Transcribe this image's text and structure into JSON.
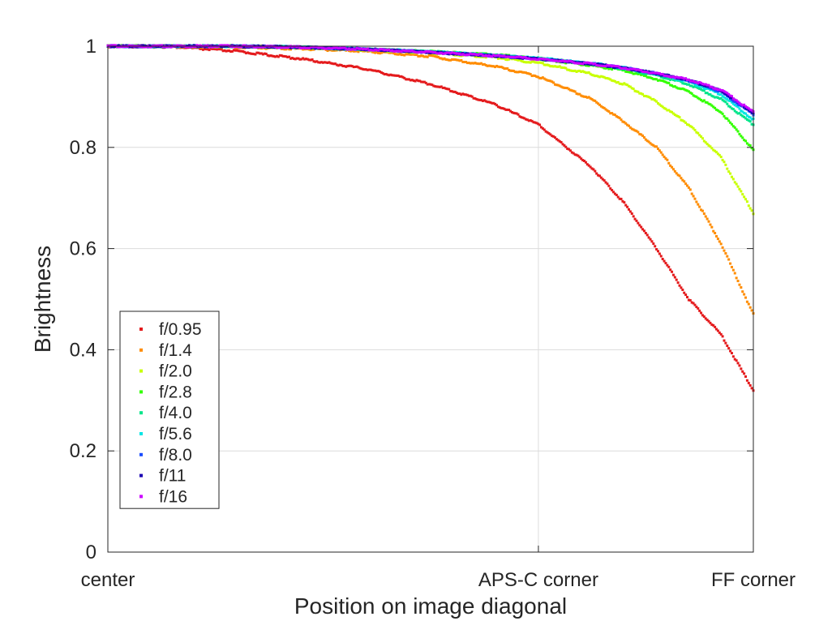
{
  "chart_data": {
    "type": "scatter",
    "title": "",
    "xlabel": "Position on image diagonal",
    "ylabel": "Brightness",
    "xlim": [
      0,
      1
    ],
    "ylim": [
      0,
      1
    ],
    "x_ticks": [
      {
        "value": 0,
        "label": "center"
      },
      {
        "value": 0.667,
        "label": "APS-C corner"
      },
      {
        "value": 1,
        "label": "FF corner"
      }
    ],
    "y_ticks": [
      {
        "value": 0,
        "label": "0"
      },
      {
        "value": 0.2,
        "label": "0.2"
      },
      {
        "value": 0.4,
        "label": "0.4"
      },
      {
        "value": 0.6,
        "label": "0.6"
      },
      {
        "value": 0.8,
        "label": "0.8"
      },
      {
        "value": 1,
        "label": "1"
      }
    ],
    "grid": true,
    "legend_position": "bottom-left",
    "x": [
      0,
      0.1,
      0.2,
      0.3,
      0.4,
      0.5,
      0.6,
      0.667,
      0.75,
      0.8,
      0.85,
      0.9,
      0.95,
      1.0
    ],
    "series": [
      {
        "name": "f/0.95",
        "color": "#e41a1c",
        "values": [
          1.0,
          0.999,
          0.99,
          0.975,
          0.955,
          0.925,
          0.885,
          0.845,
          0.76,
          0.69,
          0.6,
          0.5,
          0.43,
          0.32
        ]
      },
      {
        "name": "f/1.4",
        "color": "#ff8c00",
        "values": [
          1.0,
          1.0,
          0.998,
          0.995,
          0.99,
          0.98,
          0.96,
          0.94,
          0.895,
          0.85,
          0.8,
          0.72,
          0.61,
          0.47
        ]
      },
      {
        "name": "f/2.0",
        "color": "#c8ff00",
        "values": [
          1.0,
          1.0,
          1.0,
          0.998,
          0.993,
          0.987,
          0.978,
          0.967,
          0.945,
          0.925,
          0.89,
          0.845,
          0.78,
          0.67
        ]
      },
      {
        "name": "f/2.8",
        "color": "#33ff00",
        "values": [
          1.0,
          1.0,
          1.0,
          0.998,
          0.994,
          0.989,
          0.983,
          0.975,
          0.962,
          0.952,
          0.935,
          0.91,
          0.87,
          0.795
        ]
      },
      {
        "name": "f/4.0",
        "color": "#00e58a",
        "values": [
          1.0,
          1.0,
          1.0,
          0.998,
          0.994,
          0.989,
          0.982,
          0.976,
          0.965,
          0.955,
          0.942,
          0.925,
          0.895,
          0.845
        ]
      },
      {
        "name": "f/5.6",
        "color": "#00e5e5",
        "values": [
          1.0,
          1.0,
          1.0,
          0.998,
          0.994,
          0.989,
          0.982,
          0.976,
          0.966,
          0.957,
          0.945,
          0.93,
          0.905,
          0.855
        ]
      },
      {
        "name": "f/8.0",
        "color": "#1a4dff",
        "values": [
          1.0,
          1.0,
          1.0,
          0.998,
          0.994,
          0.988,
          0.981,
          0.975,
          0.965,
          0.957,
          0.946,
          0.932,
          0.91,
          0.865
        ]
      },
      {
        "name": "f/11",
        "color": "#1a00b3",
        "values": [
          1.0,
          1.0,
          1.0,
          0.998,
          0.994,
          0.988,
          0.981,
          0.975,
          0.965,
          0.957,
          0.946,
          0.933,
          0.912,
          0.868
        ]
      },
      {
        "name": "f/16",
        "color": "#cc00ff",
        "values": [
          1.0,
          1.0,
          1.0,
          0.998,
          0.994,
          0.988,
          0.981,
          0.975,
          0.965,
          0.957,
          0.946,
          0.934,
          0.914,
          0.87
        ]
      }
    ]
  }
}
